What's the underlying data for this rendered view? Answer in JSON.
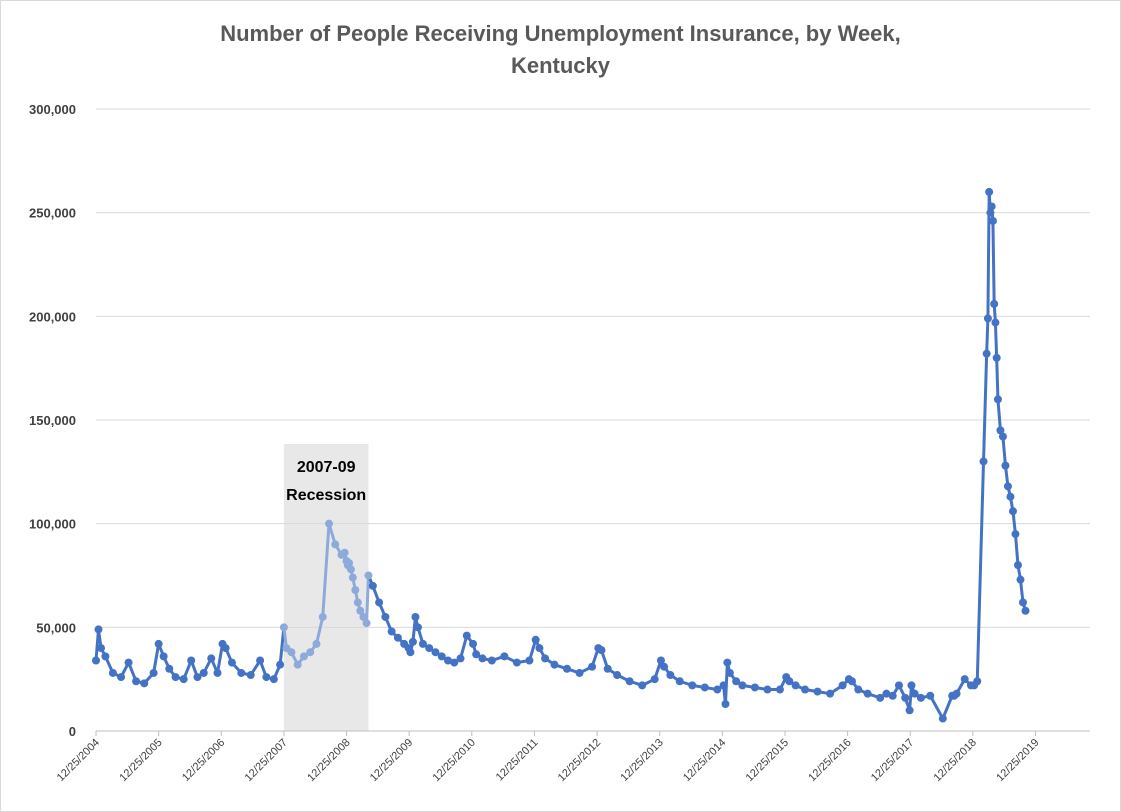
{
  "chart_data": {
    "type": "line",
    "title_line1": "Number of People Receiving Unemployment Insurance, by Week,",
    "title_line2": "Kentucky",
    "xlabel": "",
    "ylabel": "",
    "ylim": [
      0,
      300000
    ],
    "yticks": [
      0,
      50000,
      100000,
      150000,
      200000,
      250000,
      300000
    ],
    "ytick_labels": [
      "0",
      "50,000",
      "100,000",
      "150,000",
      "200,000",
      "250,000",
      "300,000"
    ],
    "xtick_labels": [
      "12/25/2004",
      "12/25/2005",
      "12/25/2006",
      "12/25/2007",
      "12/25/2008",
      "12/25/2009",
      "12/25/2010",
      "12/25/2011",
      "12/25/2012",
      "12/25/2013",
      "12/25/2014",
      "12/25/2015",
      "12/25/2016",
      "12/25/2017",
      "12/25/2018",
      "12/25/2019"
    ],
    "xlim_years": [
      2004.98,
      2020.85
    ],
    "grid": true,
    "series_color": "#4472c4",
    "recession_line_color": "#8eaadb",
    "recession_shade_color": "#e8e8e8",
    "recession_band_years": [
      2007.98,
      2009.33
    ],
    "annotation_line1": "2007-09",
    "annotation_line2": "Recession",
    "x": [
      2004.98,
      2005.02,
      2005.06,
      2005.13,
      2005.25,
      2005.38,
      2005.5,
      2005.62,
      2005.75,
      2005.9,
      2005.98,
      2006.06,
      2006.15,
      2006.25,
      2006.38,
      2006.5,
      2006.6,
      2006.7,
      2006.82,
      2006.92,
      2007.0,
      2007.05,
      2007.15,
      2007.3,
      2007.45,
      2007.6,
      2007.7,
      2007.82,
      2007.92,
      2007.98,
      2008.02,
      2008.1,
      2008.2,
      2008.3,
      2008.4,
      2008.5,
      2008.6,
      2008.7,
      2008.8,
      2008.9,
      2008.95,
      2008.98,
      2009.0,
      2009.02,
      2009.05,
      2009.08,
      2009.12,
      2009.16,
      2009.2,
      2009.25,
      2009.3,
      2009.33,
      2009.4,
      2009.5,
      2009.6,
      2009.7,
      2009.8,
      2009.9,
      2009.97,
      2010.0,
      2010.04,
      2010.08,
      2010.12,
      2010.2,
      2010.3,
      2010.4,
      2010.5,
      2010.6,
      2010.7,
      2010.8,
      2010.9,
      2011.0,
      2011.05,
      2011.15,
      2011.3,
      2011.5,
      2011.7,
      2011.9,
      2012.0,
      2012.06,
      2012.15,
      2012.3,
      2012.5,
      2012.7,
      2012.9,
      2013.0,
      2013.05,
      2013.15,
      2013.3,
      2013.5,
      2013.7,
      2013.9,
      2014.0,
      2014.05,
      2014.15,
      2014.3,
      2014.5,
      2014.7,
      2014.9,
      2015.0,
      2015.03,
      2015.06,
      2015.1,
      2015.2,
      2015.3,
      2015.5,
      2015.7,
      2015.9,
      2016.0,
      2016.05,
      2016.15,
      2016.3,
      2016.5,
      2016.7,
      2016.9,
      2017.0,
      2017.05,
      2017.15,
      2017.3,
      2017.5,
      2017.6,
      2017.7,
      2017.8,
      2017.9,
      2017.97,
      2018.0,
      2018.05,
      2018.15,
      2018.3,
      2018.5,
      2018.65,
      2018.68,
      2018.72,
      2018.85,
      2018.95,
      2019.0,
      2019.05,
      2019.15,
      2019.2,
      2019.22,
      2019.24,
      2019.26,
      2019.28,
      2019.3,
      2019.32,
      2019.34,
      2019.36,
      2019.38,
      2019.42,
      2019.46,
      2019.5,
      2019.54,
      2019.58,
      2019.62,
      2019.66,
      2019.7,
      2019.74,
      2019.78,
      2019.82
    ],
    "values": [
      34000,
      49000,
      40000,
      36000,
      28000,
      26000,
      33000,
      24000,
      23000,
      28000,
      42000,
      36000,
      30000,
      26000,
      25000,
      34000,
      26000,
      28000,
      35000,
      28000,
      42000,
      40000,
      33000,
      28000,
      27000,
      34000,
      26000,
      25000,
      32000,
      50000,
      40000,
      38000,
      32000,
      36000,
      38000,
      42000,
      55000,
      100000,
      90000,
      85000,
      86000,
      82000,
      80000,
      81000,
      78000,
      74000,
      68000,
      62000,
      58000,
      55000,
      52000,
      75000,
      70000,
      62000,
      55000,
      48000,
      45000,
      42000,
      40000,
      38000,
      43000,
      55000,
      50000,
      42000,
      40000,
      38000,
      36000,
      34000,
      33000,
      35000,
      46000,
      42000,
      37000,
      35000,
      34000,
      36000,
      33000,
      34000,
      44000,
      40000,
      35000,
      32000,
      30000,
      28000,
      31000,
      40000,
      39000,
      30000,
      27000,
      24000,
      22000,
      25000,
      34000,
      31000,
      27000,
      24000,
      22000,
      21000,
      20000,
      22000,
      13000,
      33000,
      28000,
      24000,
      22000,
      21000,
      20000,
      20000,
      26000,
      24000,
      22000,
      20000,
      19000,
      18000,
      22000,
      25000,
      24000,
      20000,
      18000,
      16000,
      18000,
      17000,
      22000,
      16000,
      10000,
      22000,
      18000,
      16000,
      17000,
      6000,
      17000,
      17000,
      18000,
      25000,
      22000,
      22000,
      24000,
      130000,
      182000,
      199000,
      260000,
      250000,
      253000,
      246000,
      206000,
      197000,
      180000,
      160000,
      145000,
      142000,
      128000,
      118000,
      113000,
      106000,
      95000,
      80000,
      73000,
      62000,
      58000
    ]
  }
}
